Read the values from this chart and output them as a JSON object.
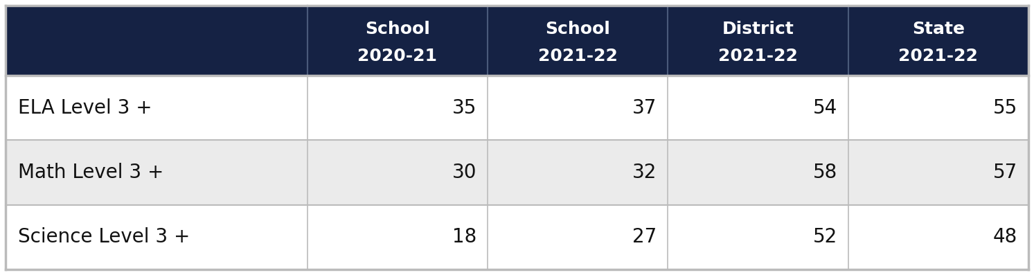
{
  "col_headers": [
    [
      "School\n2020-21"
    ],
    [
      "School\n2021-22"
    ],
    [
      "District\n2021-22"
    ],
    [
      "State\n2021-22"
    ]
  ],
  "col_headers_line1": [
    "School",
    "School",
    "District",
    "State"
  ],
  "col_headers_line2": [
    "2020-21",
    "2021-22",
    "2021-22",
    "2021-22"
  ],
  "rows": [
    {
      "label": "ELA Level 3 +",
      "values": [
        35,
        37,
        54,
        55
      ]
    },
    {
      "label": "Math Level 3 +",
      "values": [
        30,
        32,
        58,
        57
      ]
    },
    {
      "label": "Science Level 3 +",
      "values": [
        18,
        27,
        52,
        48
      ]
    }
  ],
  "header_bg": "#152244",
  "header_text_color": "#ffffff",
  "row_bg_even": "#ffffff",
  "row_bg_odd": "#ebebeb",
  "row_text_color": "#111111",
  "border_color": "#bbbbbb",
  "header_fontsize": 18,
  "cell_fontsize": 20,
  "label_fontsize": 20
}
